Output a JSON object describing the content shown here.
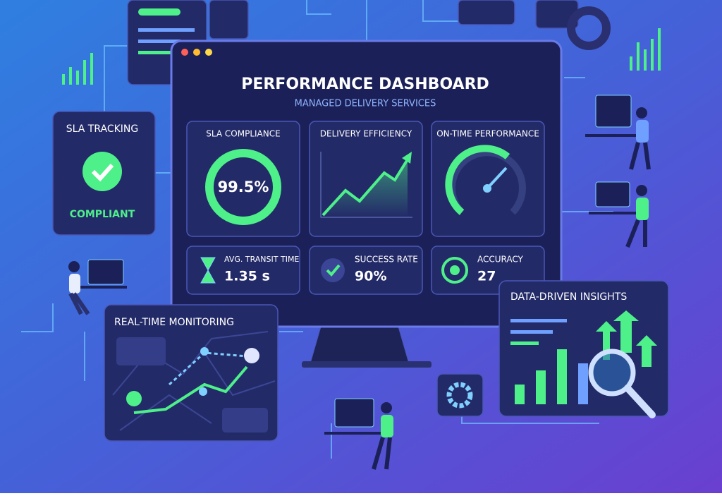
{
  "dashboard": {
    "title": "PERFORMANCE DASHBOARD",
    "subtitle": "MANAGED DELIVERY SERVICES",
    "kpis": [
      {
        "label": "SLA COMPLIANCE",
        "value": "99.5%"
      },
      {
        "label": "DELIVERY EFFICIENCY"
      },
      {
        "label": "ON-TIME PERFORMANCE"
      }
    ],
    "metrics": [
      {
        "label": "AVG. TRANSIT TIME",
        "value": "1.35 s"
      },
      {
        "label": "SUCCESS RATE",
        "value": "90%"
      },
      {
        "label": "ACCURACY",
        "value": "27"
      }
    ]
  },
  "sla_panel": {
    "title": "SLA TRACKING",
    "status": "COMPLIANT"
  },
  "monitoring_panel": {
    "title": "REAL-TIME MONITORING"
  },
  "insights_panel": {
    "title": "DATA-DRIVEN INSIGHTS"
  }
}
